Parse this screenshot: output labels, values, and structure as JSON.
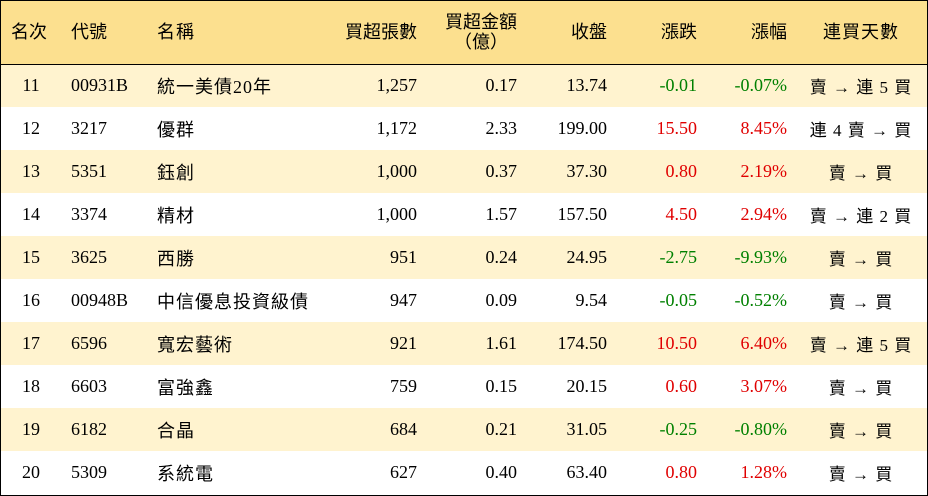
{
  "headers": {
    "rank": "名次",
    "code": "代號",
    "name": "名稱",
    "net_shares": "買超張數",
    "net_amount_line1": "買超金額",
    "net_amount_line2": "（億）",
    "close": "收盤",
    "change": "漲跌",
    "change_pct": "漲幅",
    "consecutive_days": "連買天數"
  },
  "colors": {
    "header_bg": "#fce08f",
    "row_alt_bg": "#fff3cf",
    "up": "#e00000",
    "down": "#008000"
  },
  "rows": [
    {
      "rank": "11",
      "code": "00931B",
      "name": "統一美債20年",
      "shares": "1,257",
      "amount": "0.17",
      "close": "13.74",
      "change": "-0.01",
      "pct": "-0.07%",
      "days": "賣 → 連 5 買",
      "dir": "down"
    },
    {
      "rank": "12",
      "code": "3217",
      "name": "優群",
      "shares": "1,172",
      "amount": "2.33",
      "close": "199.00",
      "change": "15.50",
      "pct": "8.45%",
      "days": "連 4 賣 → 買",
      "dir": "up"
    },
    {
      "rank": "13",
      "code": "5351",
      "name": "鈺創",
      "shares": "1,000",
      "amount": "0.37",
      "close": "37.30",
      "change": "0.80",
      "pct": "2.19%",
      "days": "賣 → 買",
      "dir": "up"
    },
    {
      "rank": "14",
      "code": "3374",
      "name": "精材",
      "shares": "1,000",
      "amount": "1.57",
      "close": "157.50",
      "change": "4.50",
      "pct": "2.94%",
      "days": "賣 → 連 2 買",
      "dir": "up"
    },
    {
      "rank": "15",
      "code": "3625",
      "name": "西勝",
      "shares": "951",
      "amount": "0.24",
      "close": "24.95",
      "change": "-2.75",
      "pct": "-9.93%",
      "days": "賣 → 買",
      "dir": "down"
    },
    {
      "rank": "16",
      "code": "00948B",
      "name": "中信優息投資級債",
      "shares": "947",
      "amount": "0.09",
      "close": "9.54",
      "change": "-0.05",
      "pct": "-0.52%",
      "days": "賣 → 買",
      "dir": "down"
    },
    {
      "rank": "17",
      "code": "6596",
      "name": "寬宏藝術",
      "shares": "921",
      "amount": "1.61",
      "close": "174.50",
      "change": "10.50",
      "pct": "6.40%",
      "days": "賣 → 連 5 買",
      "dir": "up"
    },
    {
      "rank": "18",
      "code": "6603",
      "name": "富強鑫",
      "shares": "759",
      "amount": "0.15",
      "close": "20.15",
      "change": "0.60",
      "pct": "3.07%",
      "days": "賣 → 買",
      "dir": "up"
    },
    {
      "rank": "19",
      "code": "6182",
      "name": "合晶",
      "shares": "684",
      "amount": "0.21",
      "close": "31.05",
      "change": "-0.25",
      "pct": "-0.80%",
      "days": "賣 → 買",
      "dir": "down"
    },
    {
      "rank": "20",
      "code": "5309",
      "name": "系統電",
      "shares": "627",
      "amount": "0.40",
      "close": "63.40",
      "change": "0.80",
      "pct": "1.28%",
      "days": "賣 → 買",
      "dir": "up"
    }
  ]
}
